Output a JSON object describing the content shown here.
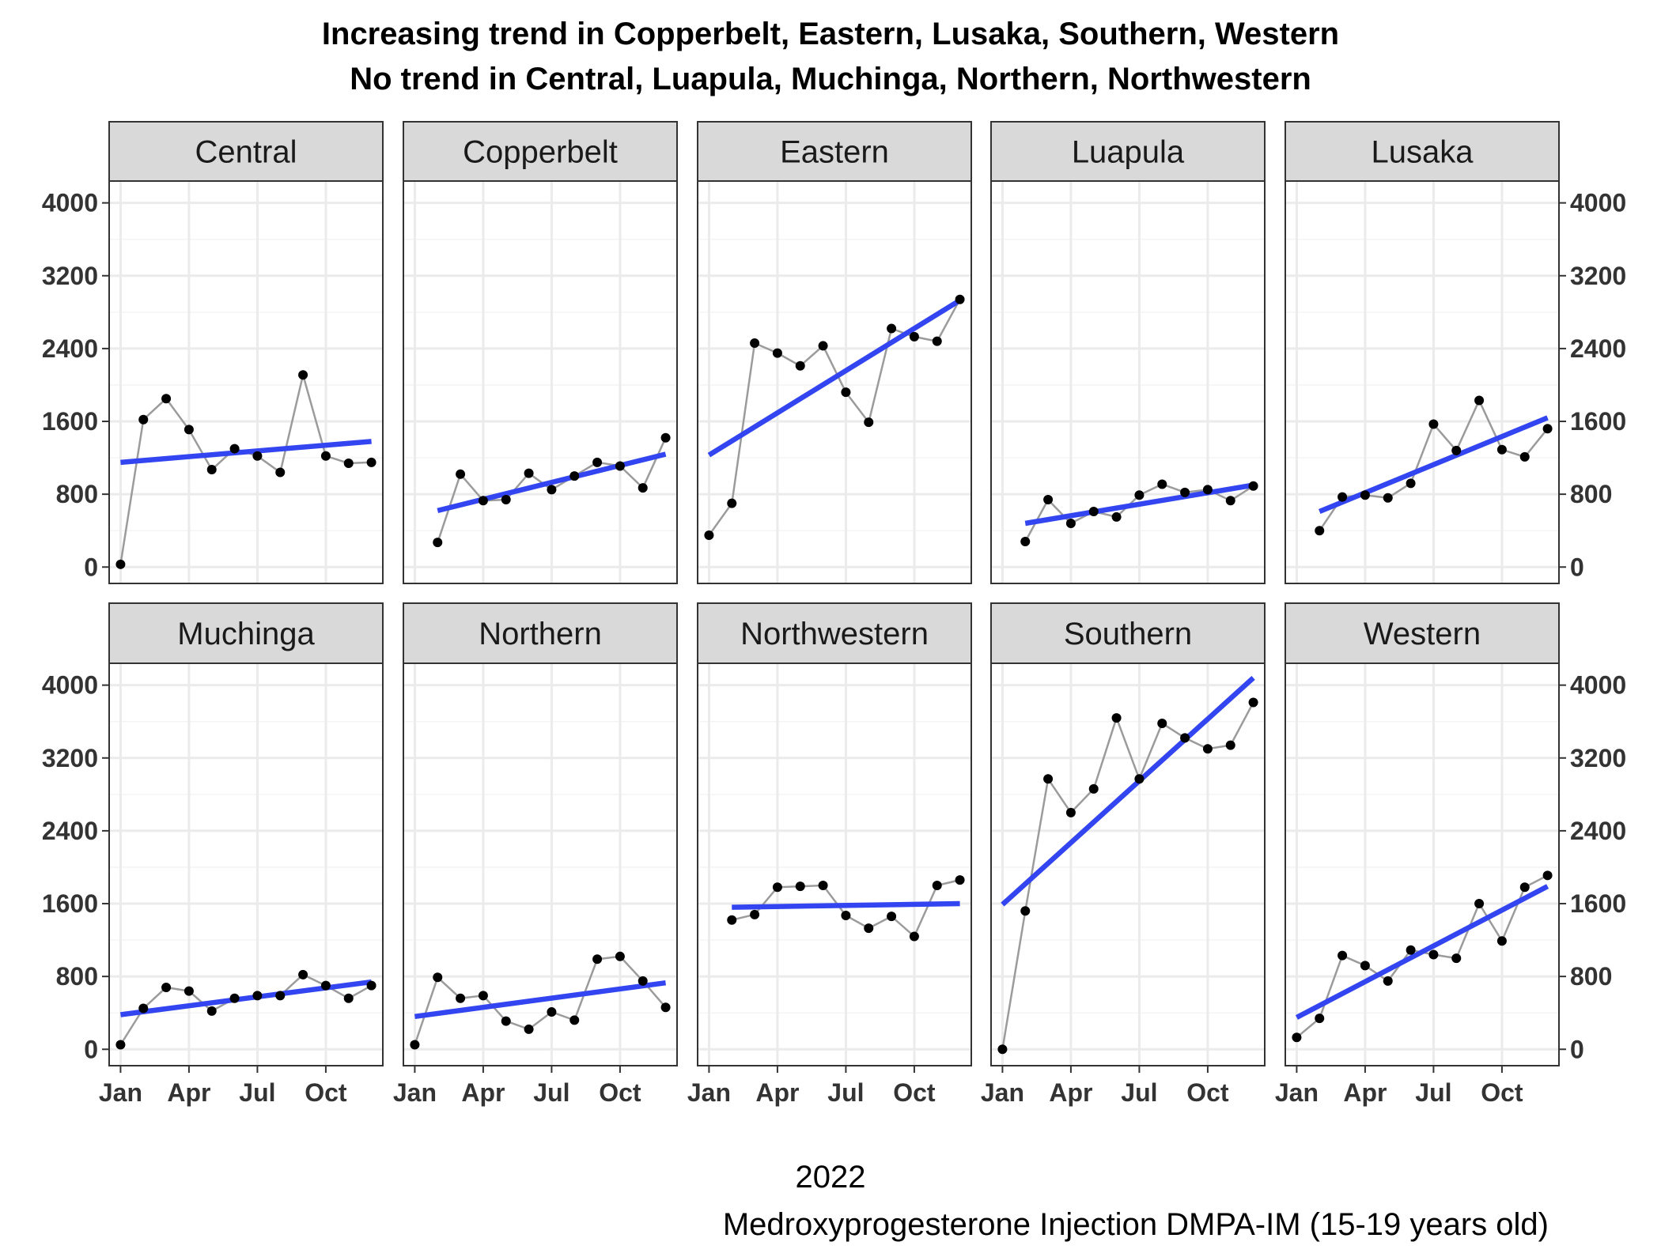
{
  "title": {
    "line1": "Increasing trend in Copperbelt, Eastern, Lusaka, Southern, Western",
    "line2": "No trend in Central, Luapula, Muchinga, Northern, Northwestern"
  },
  "caption": {
    "year": "2022",
    "indicator": "Medroxyprogesterone Injection DMPA-IM (15-19 years old)"
  },
  "chart_data": {
    "type": "line",
    "layout": "facet-grid-2x5",
    "x_tick_labels": [
      "Jan",
      "Apr",
      "Jul",
      "Oct"
    ],
    "x_tick_months": [
      1,
      4,
      7,
      10
    ],
    "x_range": [
      0.5,
      12.5
    ],
    "y_ticks": [
      0,
      800,
      1600,
      2400,
      3200,
      4000
    ],
    "y_tick_labels": [
      "0",
      "800",
      "1600",
      "2400",
      "3200",
      "4000"
    ],
    "ylim": [
      -180,
      4240
    ],
    "grid": true,
    "colors": {
      "trend": "#3245f0",
      "line": "#9b9b9b",
      "point": "#000000",
      "strip_fill": "#d9d9d9",
      "grid": "#ebebeb"
    },
    "facets": [
      {
        "name": "Central",
        "values": [
          30,
          1620,
          1850,
          1510,
          1070,
          1300,
          1220,
          1040,
          2110,
          1220,
          1140,
          1150
        ],
        "trend": [
          1150,
          1380
        ]
      },
      {
        "name": "Copperbelt",
        "values": [
          270,
          1020,
          730,
          740,
          1030,
          850,
          1000,
          1150,
          1110,
          870,
          1420
        ],
        "trend": [
          620,
          1240
        ]
      },
      {
        "name": "Eastern",
        "values": [
          350,
          700,
          2460,
          2350,
          2210,
          2430,
          1920,
          1590,
          2620,
          2530,
          2480,
          2940
        ],
        "trend": [
          1230,
          2930
        ]
      },
      {
        "name": "Luapula",
        "values": [
          280,
          740,
          480,
          610,
          550,
          790,
          910,
          820,
          850,
          730,
          890
        ],
        "trend": [
          480,
          900
        ]
      },
      {
        "name": "Lusaka",
        "values": [
          400,
          770,
          790,
          760,
          920,
          1570,
          1280,
          1830,
          1290,
          1210,
          1520
        ],
        "trend": [
          610,
          1640
        ]
      },
      {
        "name": "Muchinga",
        "values": [
          50,
          450,
          680,
          640,
          420,
          560,
          590,
          590,
          820,
          700,
          560,
          700
        ],
        "trend": [
          380,
          740
        ]
      },
      {
        "name": "Northern",
        "values": [
          50,
          790,
          560,
          590,
          310,
          220,
          410,
          320,
          990,
          1020,
          750,
          460
        ],
        "trend": [
          360,
          730
        ]
      },
      {
        "name": "Northwestern",
        "values": [
          1420,
          1480,
          1780,
          1790,
          1800,
          1470,
          1330,
          1460,
          1240,
          1800,
          1860
        ],
        "trend": [
          1560,
          1600
        ]
      },
      {
        "name": "Southern",
        "values": [
          0,
          1520,
          2970,
          2600,
          2860,
          3640,
          2970,
          3580,
          3420,
          3300,
          3340,
          3810
        ],
        "trend": [
          1590,
          4080
        ]
      },
      {
        "name": "Western",
        "values": [
          130,
          340,
          1030,
          920,
          750,
          1090,
          1040,
          1000,
          1600,
          1190,
          1780,
          1910
        ],
        "trend": [
          350,
          1790
        ]
      }
    ]
  }
}
